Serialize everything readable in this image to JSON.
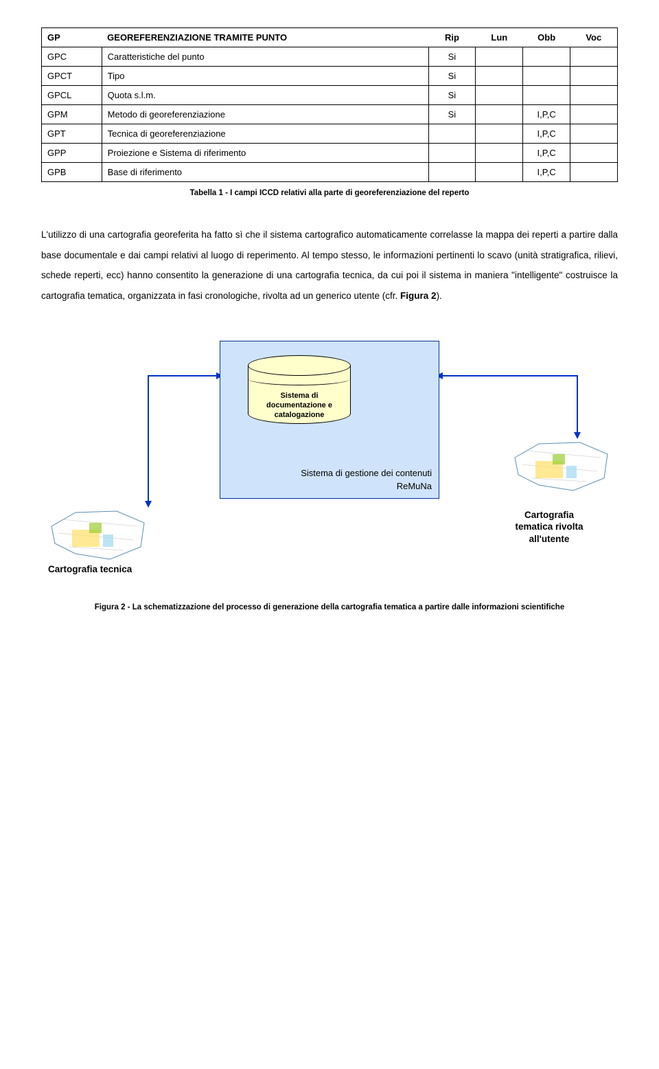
{
  "table": {
    "header": {
      "code": "GP",
      "desc": "GEOREFERENZIAZIONE TRAMITE PUNTO",
      "c1": "Rip",
      "c2": "Lun",
      "c3": "Obb",
      "c4": "Voc"
    },
    "rows": [
      {
        "code": "GPC",
        "desc": "Caratteristiche del punto",
        "c1": "Si",
        "c2": "",
        "c3": "",
        "c4": ""
      },
      {
        "code": "GPCT",
        "desc": "Tipo",
        "c1": "Si",
        "c2": "",
        "c3": "",
        "c4": ""
      },
      {
        "code": "GPCL",
        "desc": "Quota s.l.m.",
        "c1": "Si",
        "c2": "",
        "c3": "",
        "c4": ""
      },
      {
        "code": "GPM",
        "desc": "Metodo di georeferenziazione",
        "c1": "Si",
        "c2": "",
        "c3": "I,P,C",
        "c4": ""
      },
      {
        "code": "GPT",
        "desc": "Tecnica di georeferenziazione",
        "c1": "",
        "c2": "",
        "c3": "I,P,C",
        "c4": ""
      },
      {
        "code": "GPP",
        "desc": "Proiezione e Sistema di riferimento",
        "c1": "",
        "c2": "",
        "c3": "I,P,C",
        "c4": ""
      },
      {
        "code": "GPB",
        "desc": "Base di riferimento",
        "c1": "",
        "c2": "",
        "c3": "I,P,C",
        "c4": ""
      }
    ],
    "caption": "Tabella 1 - I campi ICCD relativi alla parte di georeferenziazione del reperto"
  },
  "body": {
    "p1a": "L'utilizzo di una cartografia georeferita ha fatto sì che il sistema cartografico automaticamente correlasse la mappa dei reperti a partire dalla base documentale e dai campi relativi al luogo di reperimento. Al tempo stesso, le informazioni pertinenti lo scavo (unità stratigrafica, rilievi, schede reperti, ecc) hanno consentito la generazione di una cartografia tecnica, da cui poi il sistema in maniera \"intelligente\" costruisce la cartografia tematica, organizzata in fasi cronologiche, rivolta ad un generico utente (cfr. ",
    "p1bold": "Figura 2",
    "p1b": ")."
  },
  "diagram": {
    "db_label_1": "Sistema di",
    "db_label_2": "documentazione e",
    "db_label_3": "catalogazione",
    "system_label_1": "Sistema di gestione dei contenuti",
    "system_label_2": "ReMuNa",
    "cart_tecnica": "Cartografia tecnica",
    "cart_utente_1": "Cartografia",
    "cart_utente_2": "tematica rivolta",
    "cart_utente_3": "all'utente",
    "colors": {
      "box_border": "#003399",
      "box_fill": "#cfe4fb",
      "db_fill": "#ffffcc",
      "arrow": "#0033cc"
    }
  },
  "fig_caption": "Figura 2 - La schematizzazione del processo di generazione della cartografia tematica a partire dalle informazioni scientifiche"
}
